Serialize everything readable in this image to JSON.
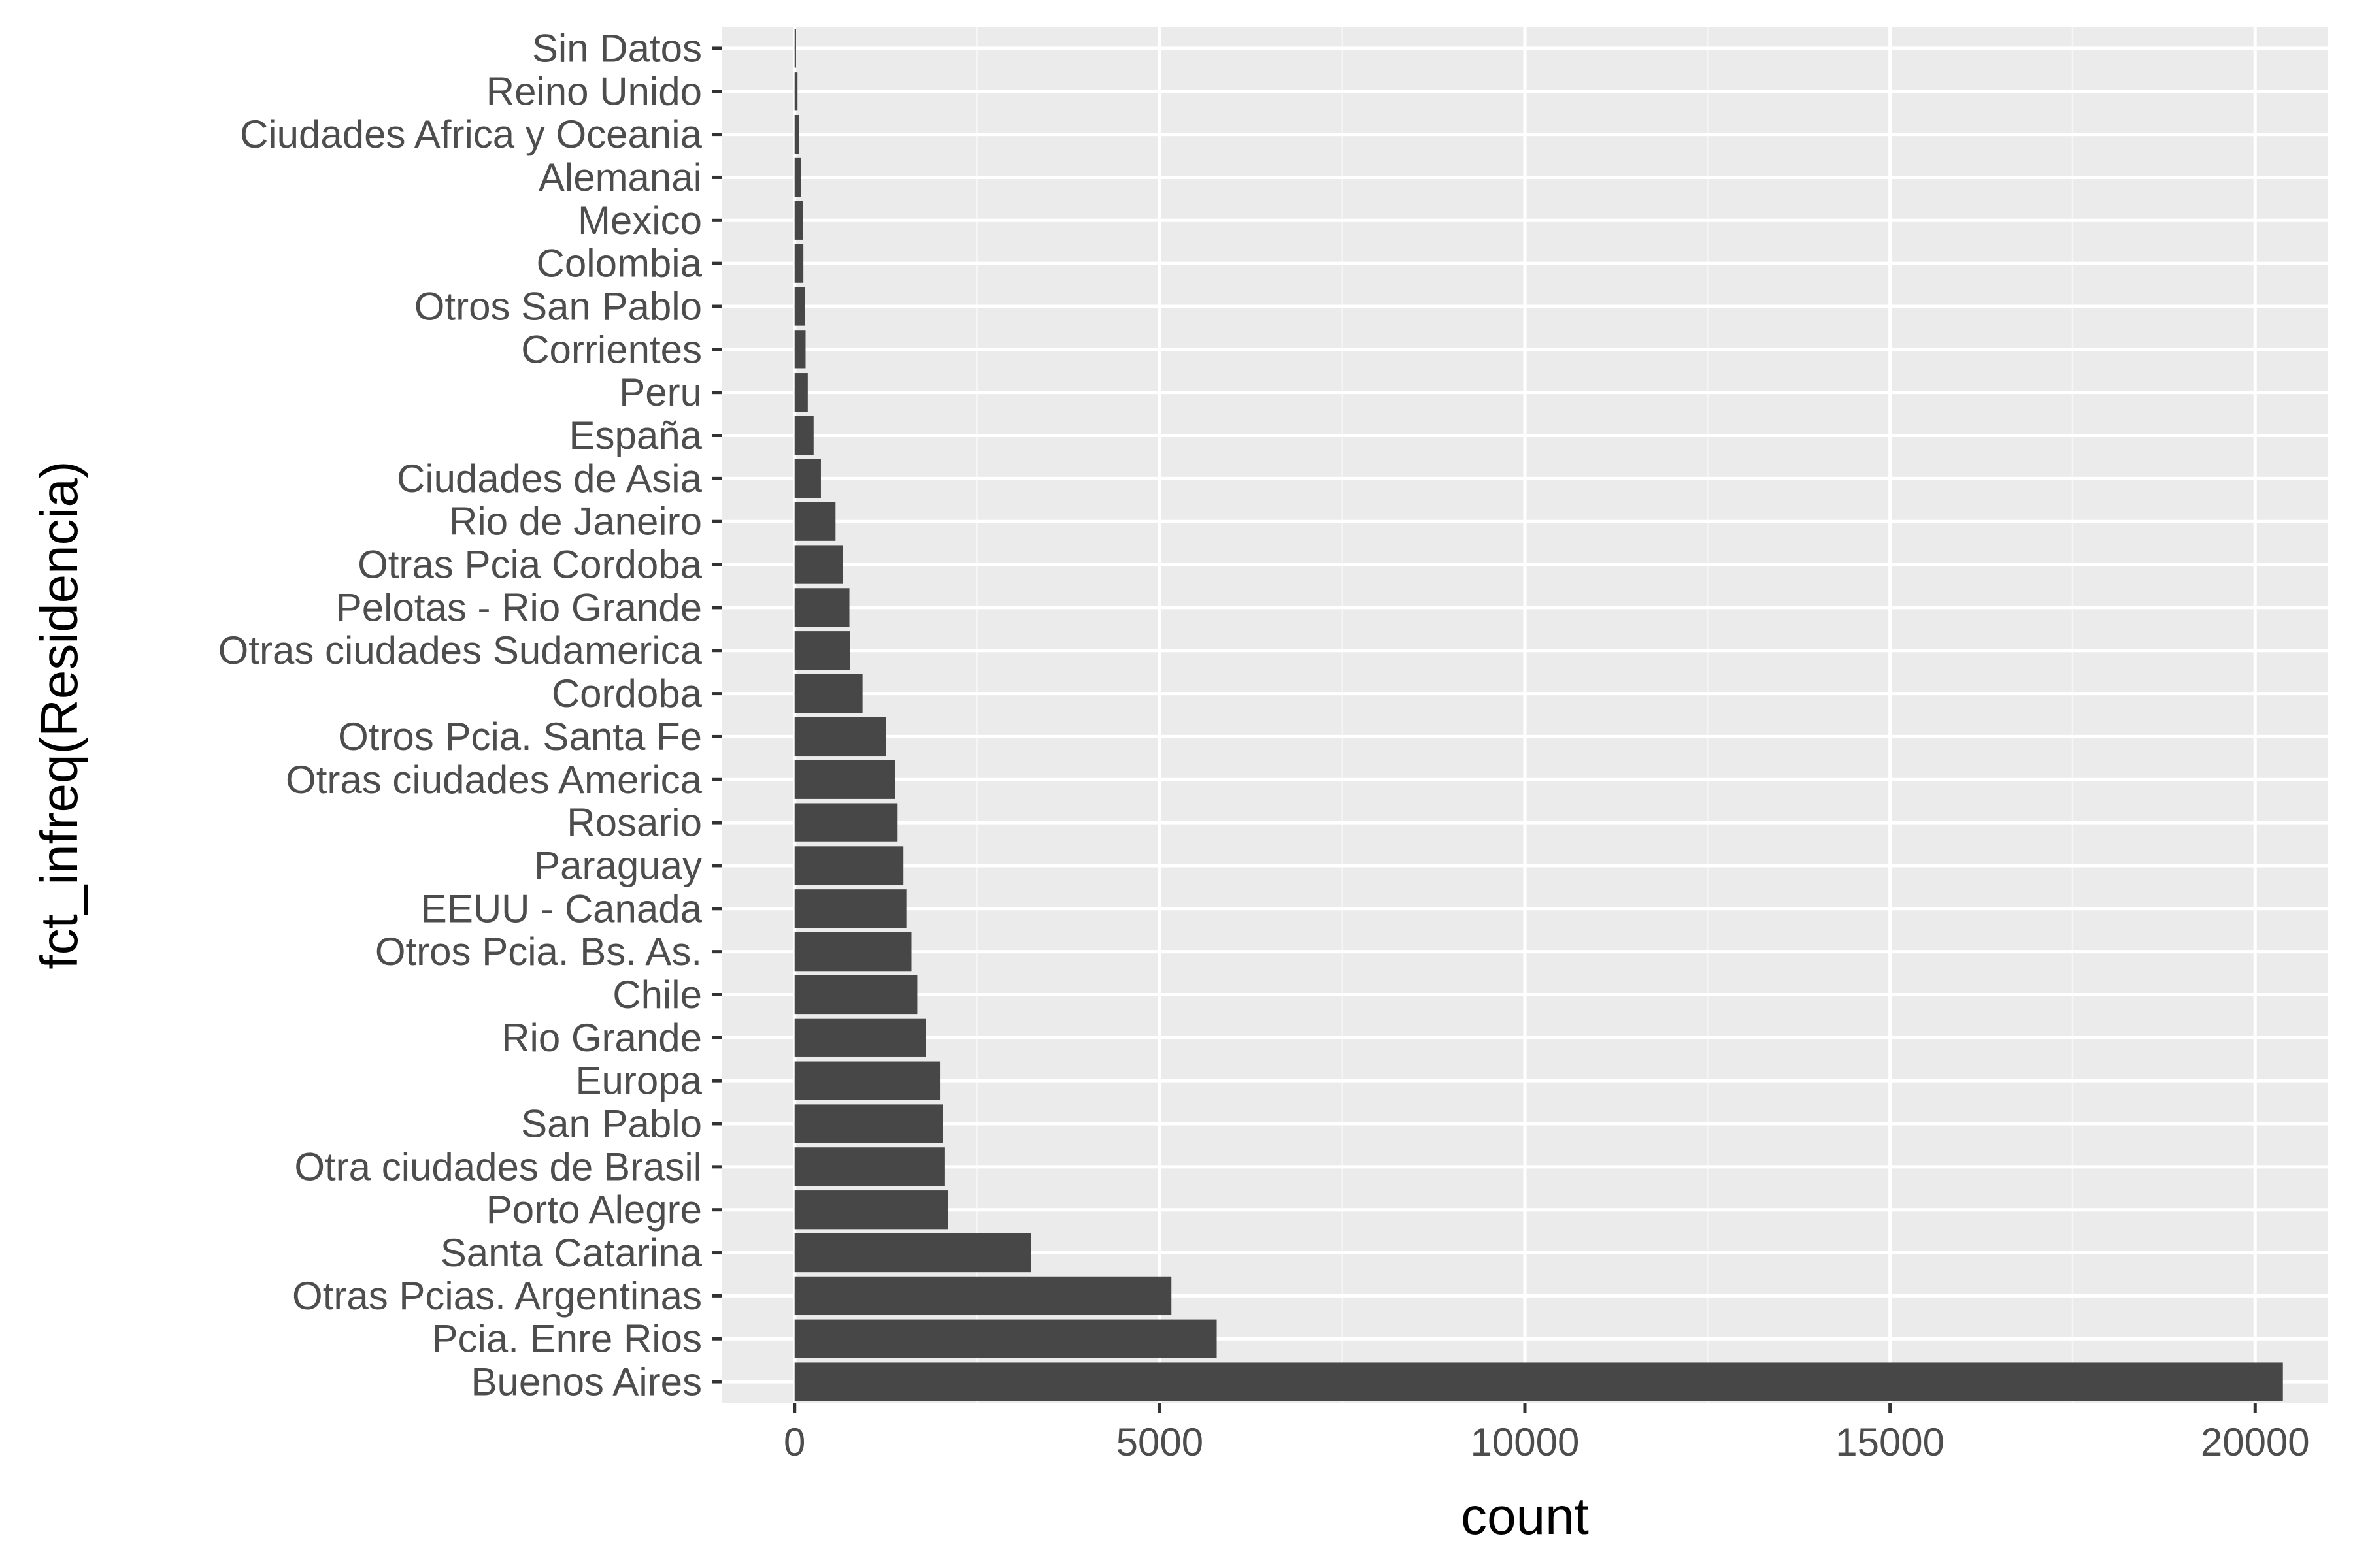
{
  "chart_data": {
    "type": "bar",
    "orientation": "horizontal",
    "title": "",
    "xlabel": "count",
    "ylabel": "fct_infreq(Residencia)",
    "xlim": [
      -1000,
      21000
    ],
    "xticks": [
      0,
      5000,
      10000,
      15000,
      20000
    ],
    "xtick_labels": [
      "0",
      "5000",
      "10000",
      "15000",
      "20000"
    ],
    "grid": true,
    "legend": "none",
    "categories": [
      "Sin Datos",
      "Reino Unido",
      "Ciudades Africa y Oceania",
      "Alemanai",
      "Mexico",
      "Colombia",
      "Otros San Pablo",
      "Corrientes",
      "Peru",
      "España",
      "Ciudades de Asia",
      "Rio de Janeiro",
      "Otras Pcia Cordoba",
      "Pelotas - Rio Grande",
      "Otras ciudades Sudamerica",
      "Cordoba",
      "Otros Pcia. Santa Fe",
      "Otras ciudades America",
      "Rosario",
      "Paraguay",
      "EEUU - Canada",
      "Otros Pcia. Bs. As.",
      "Chile",
      "Rio Grande",
      "Europa",
      "San Pablo",
      "Otra  ciudades de Brasil",
      "Porto Alegre",
      "Santa Catarina",
      "Otras Pcias. Argentinas",
      "Pcia. Enre Rios",
      "Buenos Aires"
    ],
    "values": [
      20,
      40,
      60,
      90,
      110,
      120,
      140,
      150,
      180,
      260,
      360,
      560,
      660,
      750,
      760,
      930,
      1250,
      1380,
      1410,
      1490,
      1530,
      1600,
      1680,
      1800,
      1990,
      2030,
      2060,
      2100,
      3240,
      5160,
      5780,
      20380
    ]
  },
  "colors": {
    "panel_background": "#ebebeb",
    "grid_major": "#ffffff",
    "grid_minor": "#f5f5f5",
    "bar_fill": "#474747",
    "tick_text": "#4d4d4d",
    "tick_mark": "#333333",
    "axis_title": "#000000",
    "page_background": "#ffffff"
  }
}
